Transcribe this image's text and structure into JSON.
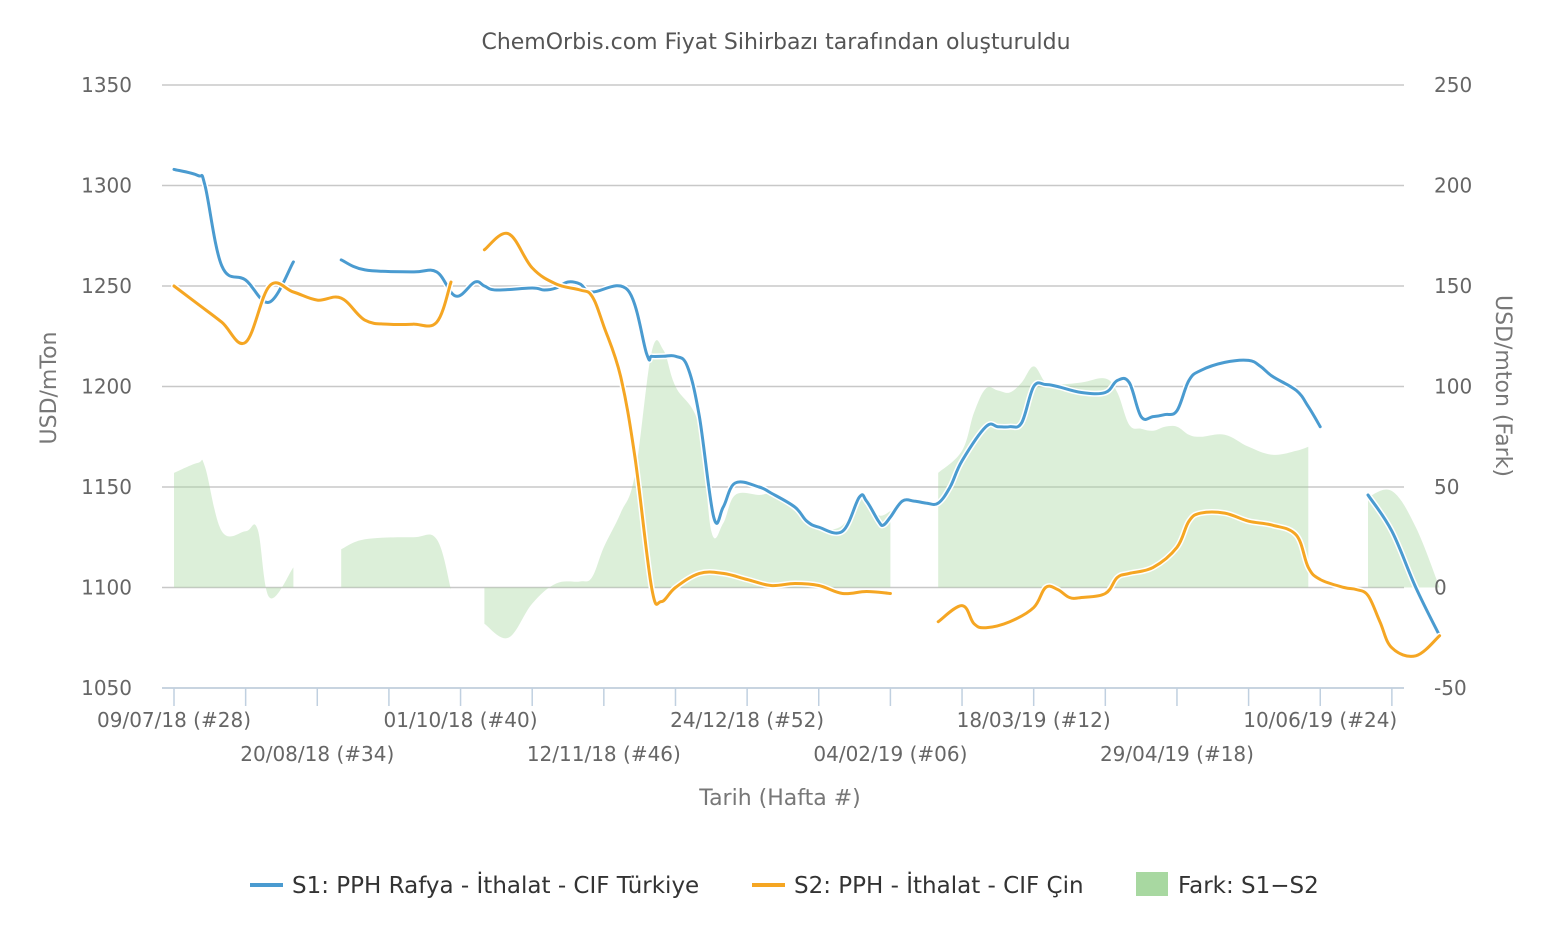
{
  "chart_data": {
    "type": "line",
    "title": "ChemOrbis.com Fiyat Sihirbazı tarafından oluşturuldu",
    "xlabel": "Tarih (Hafta #)",
    "ylabel_left": "USD/mTon",
    "ylabel_right": "USD/mton (Fark)",
    "ylim_left": [
      1050,
      1350
    ],
    "ylim_right": [
      -50,
      250
    ],
    "yticks_left": [
      "1350",
      "1300",
      "1250",
      "1200",
      "1150",
      "1100",
      "1050"
    ],
    "yticks_right": [
      "250",
      "200",
      "150",
      "100",
      "50",
      "0",
      "-50"
    ],
    "x_ticks": [
      {
        "week": 0,
        "label": "09/07/18 (#28)",
        "row": 1
      },
      {
        "week": 6,
        "label": "20/08/18 (#34)",
        "row": 2
      },
      {
        "week": 12,
        "label": "01/10/18 (#40)",
        "row": 1
      },
      {
        "week": 18,
        "label": "12/11/18 (#46)",
        "row": 2
      },
      {
        "week": 24,
        "label": "24/12/18 (#52)",
        "row": 1
      },
      {
        "week": 30,
        "label": "04/02/19 (#06)",
        "row": 2
      },
      {
        "week": 36,
        "label": "18/03/19 (#12)",
        "row": 1
      },
      {
        "week": 42,
        "label": "29/04/19 (#18)",
        "row": 2
      },
      {
        "week": 48,
        "label": "10/06/19 (#24)",
        "row": 1
      }
    ],
    "minor_tick_weeks": [
      0,
      3,
      6,
      9,
      12,
      15,
      18,
      21,
      24,
      27,
      30,
      33,
      36,
      39,
      42,
      45,
      48,
      51
    ],
    "grid": true,
    "legend_position": "bottom",
    "series": [
      {
        "name": "S1: PPH Rafya - İthalat - CIF Türkiye",
        "axis": "left",
        "color": "#4a9bd0",
        "segments": [
          [
            [
              0,
              1308
            ],
            [
              1,
              1305
            ],
            [
              1.3,
              1300
            ],
            [
              2,
              1260
            ],
            [
              3,
              1253
            ],
            [
              4,
              1242
            ],
            [
              5,
              1262
            ]
          ],
          [
            [
              7,
              1263
            ],
            [
              8,
              1258
            ],
            [
              10,
              1257
            ],
            [
              11,
              1257
            ],
            [
              11.8,
              1245
            ],
            [
              12.6,
              1252
            ],
            [
              13,
              1250
            ],
            [
              13.5,
              1248
            ],
            [
              15,
              1249
            ],
            [
              15.5,
              1248
            ],
            [
              16,
              1249
            ],
            [
              16.5,
              1252
            ],
            [
              17,
              1251
            ],
            [
              17.5,
              1247
            ],
            [
              19,
              1248
            ],
            [
              19.8,
              1216
            ],
            [
              20,
              1215
            ],
            [
              20.5,
              1215
            ],
            [
              21,
              1215
            ],
            [
              21.5,
              1210
            ],
            [
              22,
              1185
            ],
            [
              22.6,
              1135
            ],
            [
              23,
              1140
            ],
            [
              23.5,
              1152
            ],
            [
              24.5,
              1150
            ],
            [
              25,
              1147
            ],
            [
              26,
              1140
            ],
            [
              26.5,
              1133
            ],
            [
              27,
              1130
            ],
            [
              28,
              1128
            ],
            [
              28.7,
              1145
            ],
            [
              29,
              1143
            ],
            [
              29.5,
              1133
            ],
            [
              29.7,
              1131
            ],
            [
              30,
              1135
            ],
            [
              30.5,
              1143
            ],
            [
              31,
              1143
            ],
            [
              31.5,
              1142
            ],
            [
              32,
              1142
            ],
            [
              32.5,
              1150
            ],
            [
              33,
              1163
            ],
            [
              34,
              1180
            ],
            [
              34.5,
              1180
            ],
            [
              35,
              1180
            ],
            [
              35.5,
              1182
            ],
            [
              36,
              1200
            ],
            [
              36.5,
              1201
            ],
            [
              37,
              1200
            ],
            [
              38,
              1197
            ],
            [
              39,
              1197
            ],
            [
              39.5,
              1203
            ],
            [
              40,
              1202
            ],
            [
              40.5,
              1185
            ],
            [
              41,
              1185
            ],
            [
              41.5,
              1186
            ],
            [
              42,
              1188
            ],
            [
              42.5,
              1203
            ],
            [
              43,
              1208
            ],
            [
              44,
              1212
            ],
            [
              45,
              1213
            ],
            [
              45.5,
              1210
            ],
            [
              46,
              1205
            ],
            [
              47,
              1198
            ],
            [
              47.5,
              1190
            ],
            [
              48,
              1180
            ]
          ],
          [
            [
              50,
              1146
            ],
            [
              51,
              1128
            ],
            [
              52,
              1100
            ],
            [
              53,
              1076
            ]
          ]
        ]
      },
      {
        "name": "S2: PPH - İthalat - CIF Çin",
        "axis": "left",
        "color": "#f5a623",
        "segments": [
          [
            [
              0,
              1250
            ],
            [
              1,
              1241
            ],
            [
              2,
              1232
            ],
            [
              3,
              1222
            ],
            [
              4,
              1250
            ],
            [
              5,
              1247
            ],
            [
              6,
              1243
            ],
            [
              7,
              1244
            ],
            [
              8,
              1233
            ],
            [
              9,
              1231
            ],
            [
              10,
              1231
            ],
            [
              11,
              1232
            ],
            [
              11.6,
              1252
            ]
          ],
          [
            [
              13,
              1268
            ],
            [
              14,
              1276
            ],
            [
              15,
              1259
            ],
            [
              16,
              1251
            ],
            [
              17,
              1248
            ],
            [
              17.5,
              1245
            ],
            [
              18,
              1230
            ],
            [
              18.7,
              1205
            ],
            [
              19.3,
              1165
            ],
            [
              20,
              1100
            ],
            [
              20.4,
              1093
            ],
            [
              21,
              1100
            ],
            [
              22,
              1107
            ],
            [
              23,
              1107
            ],
            [
              24,
              1104
            ],
            [
              25,
              1101
            ],
            [
              26,
              1102
            ],
            [
              27,
              1101
            ],
            [
              28,
              1097
            ],
            [
              29,
              1098
            ],
            [
              30,
              1097
            ]
          ],
          [
            [
              32,
              1083
            ],
            [
              33,
              1091
            ],
            [
              33.5,
              1082
            ],
            [
              34,
              1080
            ],
            [
              35,
              1083
            ],
            [
              36,
              1090
            ],
            [
              36.5,
              1100
            ],
            [
              37,
              1099
            ],
            [
              37.5,
              1095
            ],
            [
              38,
              1095
            ],
            [
              39,
              1097
            ],
            [
              39.5,
              1105
            ],
            [
              40,
              1107
            ],
            [
              41,
              1110
            ],
            [
              42,
              1120
            ],
            [
              42.5,
              1133
            ],
            [
              43,
              1137
            ],
            [
              44,
              1137
            ],
            [
              45,
              1133
            ],
            [
              46,
              1131
            ],
            [
              47,
              1126
            ],
            [
              47.5,
              1110
            ],
            [
              48,
              1104
            ],
            [
              49,
              1100
            ],
            [
              49.5,
              1099
            ],
            [
              50,
              1096
            ],
            [
              50.5,
              1083
            ],
            [
              51,
              1070
            ],
            [
              52,
              1066
            ],
            [
              53,
              1076
            ]
          ]
        ]
      },
      {
        "name": "Fark: S1−S2",
        "axis": "right",
        "type": "area",
        "color": "#a8d8a1",
        "segments": [
          [
            [
              0,
              57
            ],
            [
              1,
              62
            ],
            [
              1.3,
              60
            ],
            [
              2,
              28
            ],
            [
              3,
              28
            ],
            [
              3.5,
              29
            ],
            [
              4,
              -5
            ],
            [
              5,
              10
            ]
          ],
          [
            [
              7,
              19
            ],
            [
              8,
              24
            ],
            [
              10,
              25
            ],
            [
              11,
              24
            ],
            [
              11.6,
              -1
            ]
          ],
          [
            [
              13,
              -18
            ],
            [
              14,
              -25
            ],
            [
              15,
              -8
            ],
            [
              16,
              2
            ],
            [
              17,
              3
            ],
            [
              17.5,
              5
            ],
            [
              18,
              20
            ],
            [
              18.7,
              37
            ],
            [
              19.3,
              56
            ],
            [
              20,
              117
            ],
            [
              20.5,
              118
            ],
            [
              21,
              100
            ],
            [
              22,
              80
            ],
            [
              22.5,
              28
            ],
            [
              23,
              32
            ],
            [
              23.5,
              46
            ],
            [
              24.5,
              46
            ],
            [
              25,
              46
            ],
            [
              26,
              38
            ],
            [
              26.5,
              32
            ],
            [
              27,
              29
            ],
            [
              28,
              31
            ],
            [
              28.7,
              46
            ],
            [
              29,
              45
            ],
            [
              29.5,
              36
            ],
            [
              30,
              38
            ]
          ],
          [
            [
              32,
              57
            ],
            [
              33,
              68
            ],
            [
              33.5,
              87
            ],
            [
              34,
              99
            ],
            [
              34.5,
              98
            ],
            [
              35,
              97
            ],
            [
              35.5,
              102
            ],
            [
              36,
              110
            ],
            [
              36.5,
              102
            ],
            [
              37,
              101
            ],
            [
              38,
              102
            ],
            [
              39,
              104
            ],
            [
              39.5,
              97
            ],
            [
              40,
              81
            ],
            [
              40.5,
              79
            ],
            [
              41,
              78
            ],
            [
              41.5,
              80
            ],
            [
              42,
              80
            ],
            [
              42.5,
              76
            ],
            [
              43,
              75
            ],
            [
              44,
              76
            ],
            [
              45,
              70
            ],
            [
              46,
              66
            ],
            [
              47,
              68
            ],
            [
              47.5,
              70
            ]
          ],
          [
            [
              50,
              45
            ],
            [
              51,
              48
            ],
            [
              52,
              30
            ],
            [
              53,
              0
            ]
          ]
        ]
      }
    ]
  }
}
